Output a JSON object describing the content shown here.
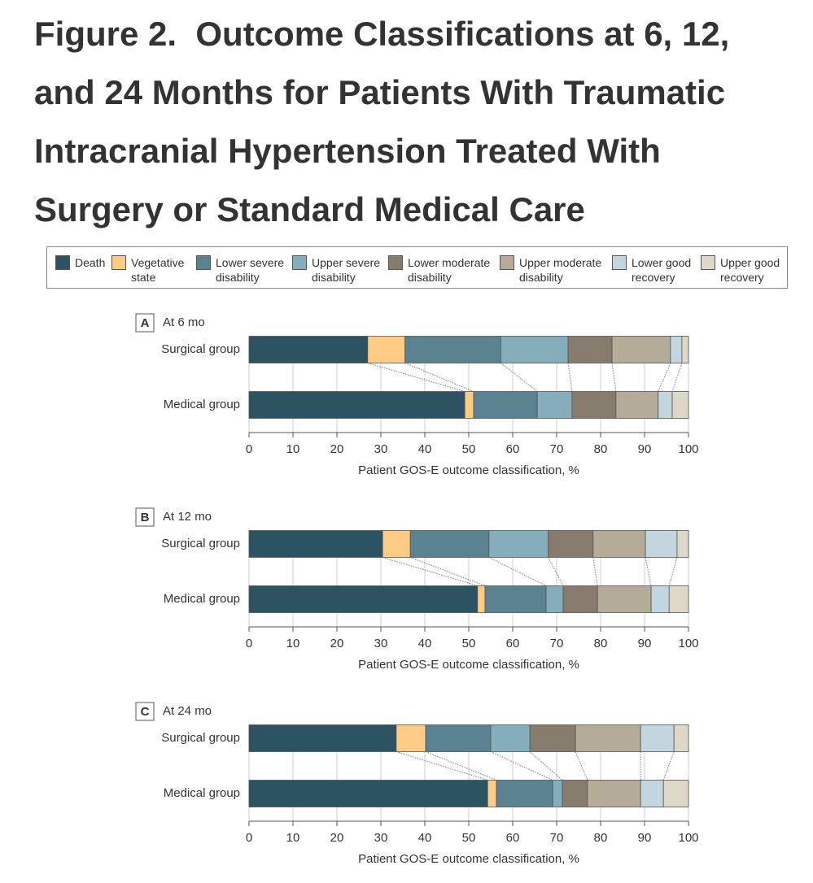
{
  "header": {
    "title": "Figure 2.  Outcome Classifications at 6, 12, and 24 Months for Patients With Traumatic Intracranial Hypertension Treated With Surgery or Standard Medical Care"
  },
  "chart_data": [
    {
      "type": "bar",
      "orientation": "horizontal",
      "stacked": true,
      "panel": "A",
      "title": "At 6 mo",
      "xlabel": "Patient GOS-E outcome classification, %",
      "categories": [
        "Surgical group",
        "Medical group"
      ],
      "xlim": [
        0,
        100
      ],
      "xticks": [
        0,
        10,
        20,
        30,
        40,
        50,
        60,
        70,
        80,
        90,
        100
      ],
      "grid": true,
      "series": [
        {
          "name": "Death",
          "color": "#2d5261",
          "values": [
            27.0,
            49.1
          ]
        },
        {
          "name": "Vegetative state",
          "color": "#fdcb86",
          "values": [
            8.5,
            2.0
          ]
        },
        {
          "name": "Lower severe disability",
          "color": "#5b8290",
          "values": [
            21.8,
            14.5
          ]
        },
        {
          "name": "Upper severe disability",
          "color": "#86adbb",
          "values": [
            15.3,
            7.9
          ]
        },
        {
          "name": "Lower moderate disability",
          "color": "#877b6e",
          "values": [
            10.0,
            10.0
          ]
        },
        {
          "name": "Upper moderate disability",
          "color": "#b5ab99",
          "values": [
            13.3,
            9.6
          ]
        },
        {
          "name": "Lower good recovery",
          "color": "#c3d6e0",
          "values": [
            2.6,
            3.2
          ]
        },
        {
          "name": "Upper good recovery",
          "color": "#ddd8c8",
          "values": [
            1.5,
            3.7
          ]
        }
      ]
    },
    {
      "type": "bar",
      "orientation": "horizontal",
      "stacked": true,
      "panel": "B",
      "title": "At 12 mo",
      "xlabel": "Patient GOS-E outcome classification, %",
      "categories": [
        "Surgical group",
        "Medical group"
      ],
      "xlim": [
        0,
        100
      ],
      "xticks": [
        0,
        10,
        20,
        30,
        40,
        50,
        60,
        70,
        80,
        90,
        100
      ],
      "grid": true,
      "series": [
        {
          "values": [
            30.4,
            52.0
          ]
        },
        {
          "values": [
            6.3,
            1.7
          ]
        },
        {
          "values": [
            17.9,
            13.9
          ]
        },
        {
          "values": [
            13.5,
            3.9
          ]
        },
        {
          "values": [
            10.2,
            7.8
          ]
        },
        {
          "values": [
            11.9,
            12.2
          ]
        },
        {
          "values": [
            7.2,
            4.1
          ]
        },
        {
          "values": [
            2.6,
            4.4
          ]
        }
      ]
    },
    {
      "type": "bar",
      "orientation": "horizontal",
      "stacked": true,
      "panel": "C",
      "title": "At 24 mo",
      "xlabel": "Patient GOS-E outcome classification, %",
      "categories": [
        "Surgical group",
        "Medical group"
      ],
      "xlim": [
        0,
        100
      ],
      "xticks": [
        0,
        10,
        20,
        30,
        40,
        50,
        60,
        70,
        80,
        90,
        100
      ],
      "grid": true,
      "series": [
        {
          "values": [
            33.5,
            54.3
          ]
        },
        {
          "values": [
            6.7,
            2.0
          ]
        },
        {
          "values": [
            14.8,
            12.8
          ]
        },
        {
          "values": [
            8.9,
            2.2
          ]
        },
        {
          "values": [
            10.4,
            5.7
          ]
        },
        {
          "values": [
            14.8,
            12.1
          ]
        },
        {
          "values": [
            7.6,
            5.2
          ]
        },
        {
          "values": [
            3.3,
            5.7
          ]
        }
      ]
    }
  ]
}
